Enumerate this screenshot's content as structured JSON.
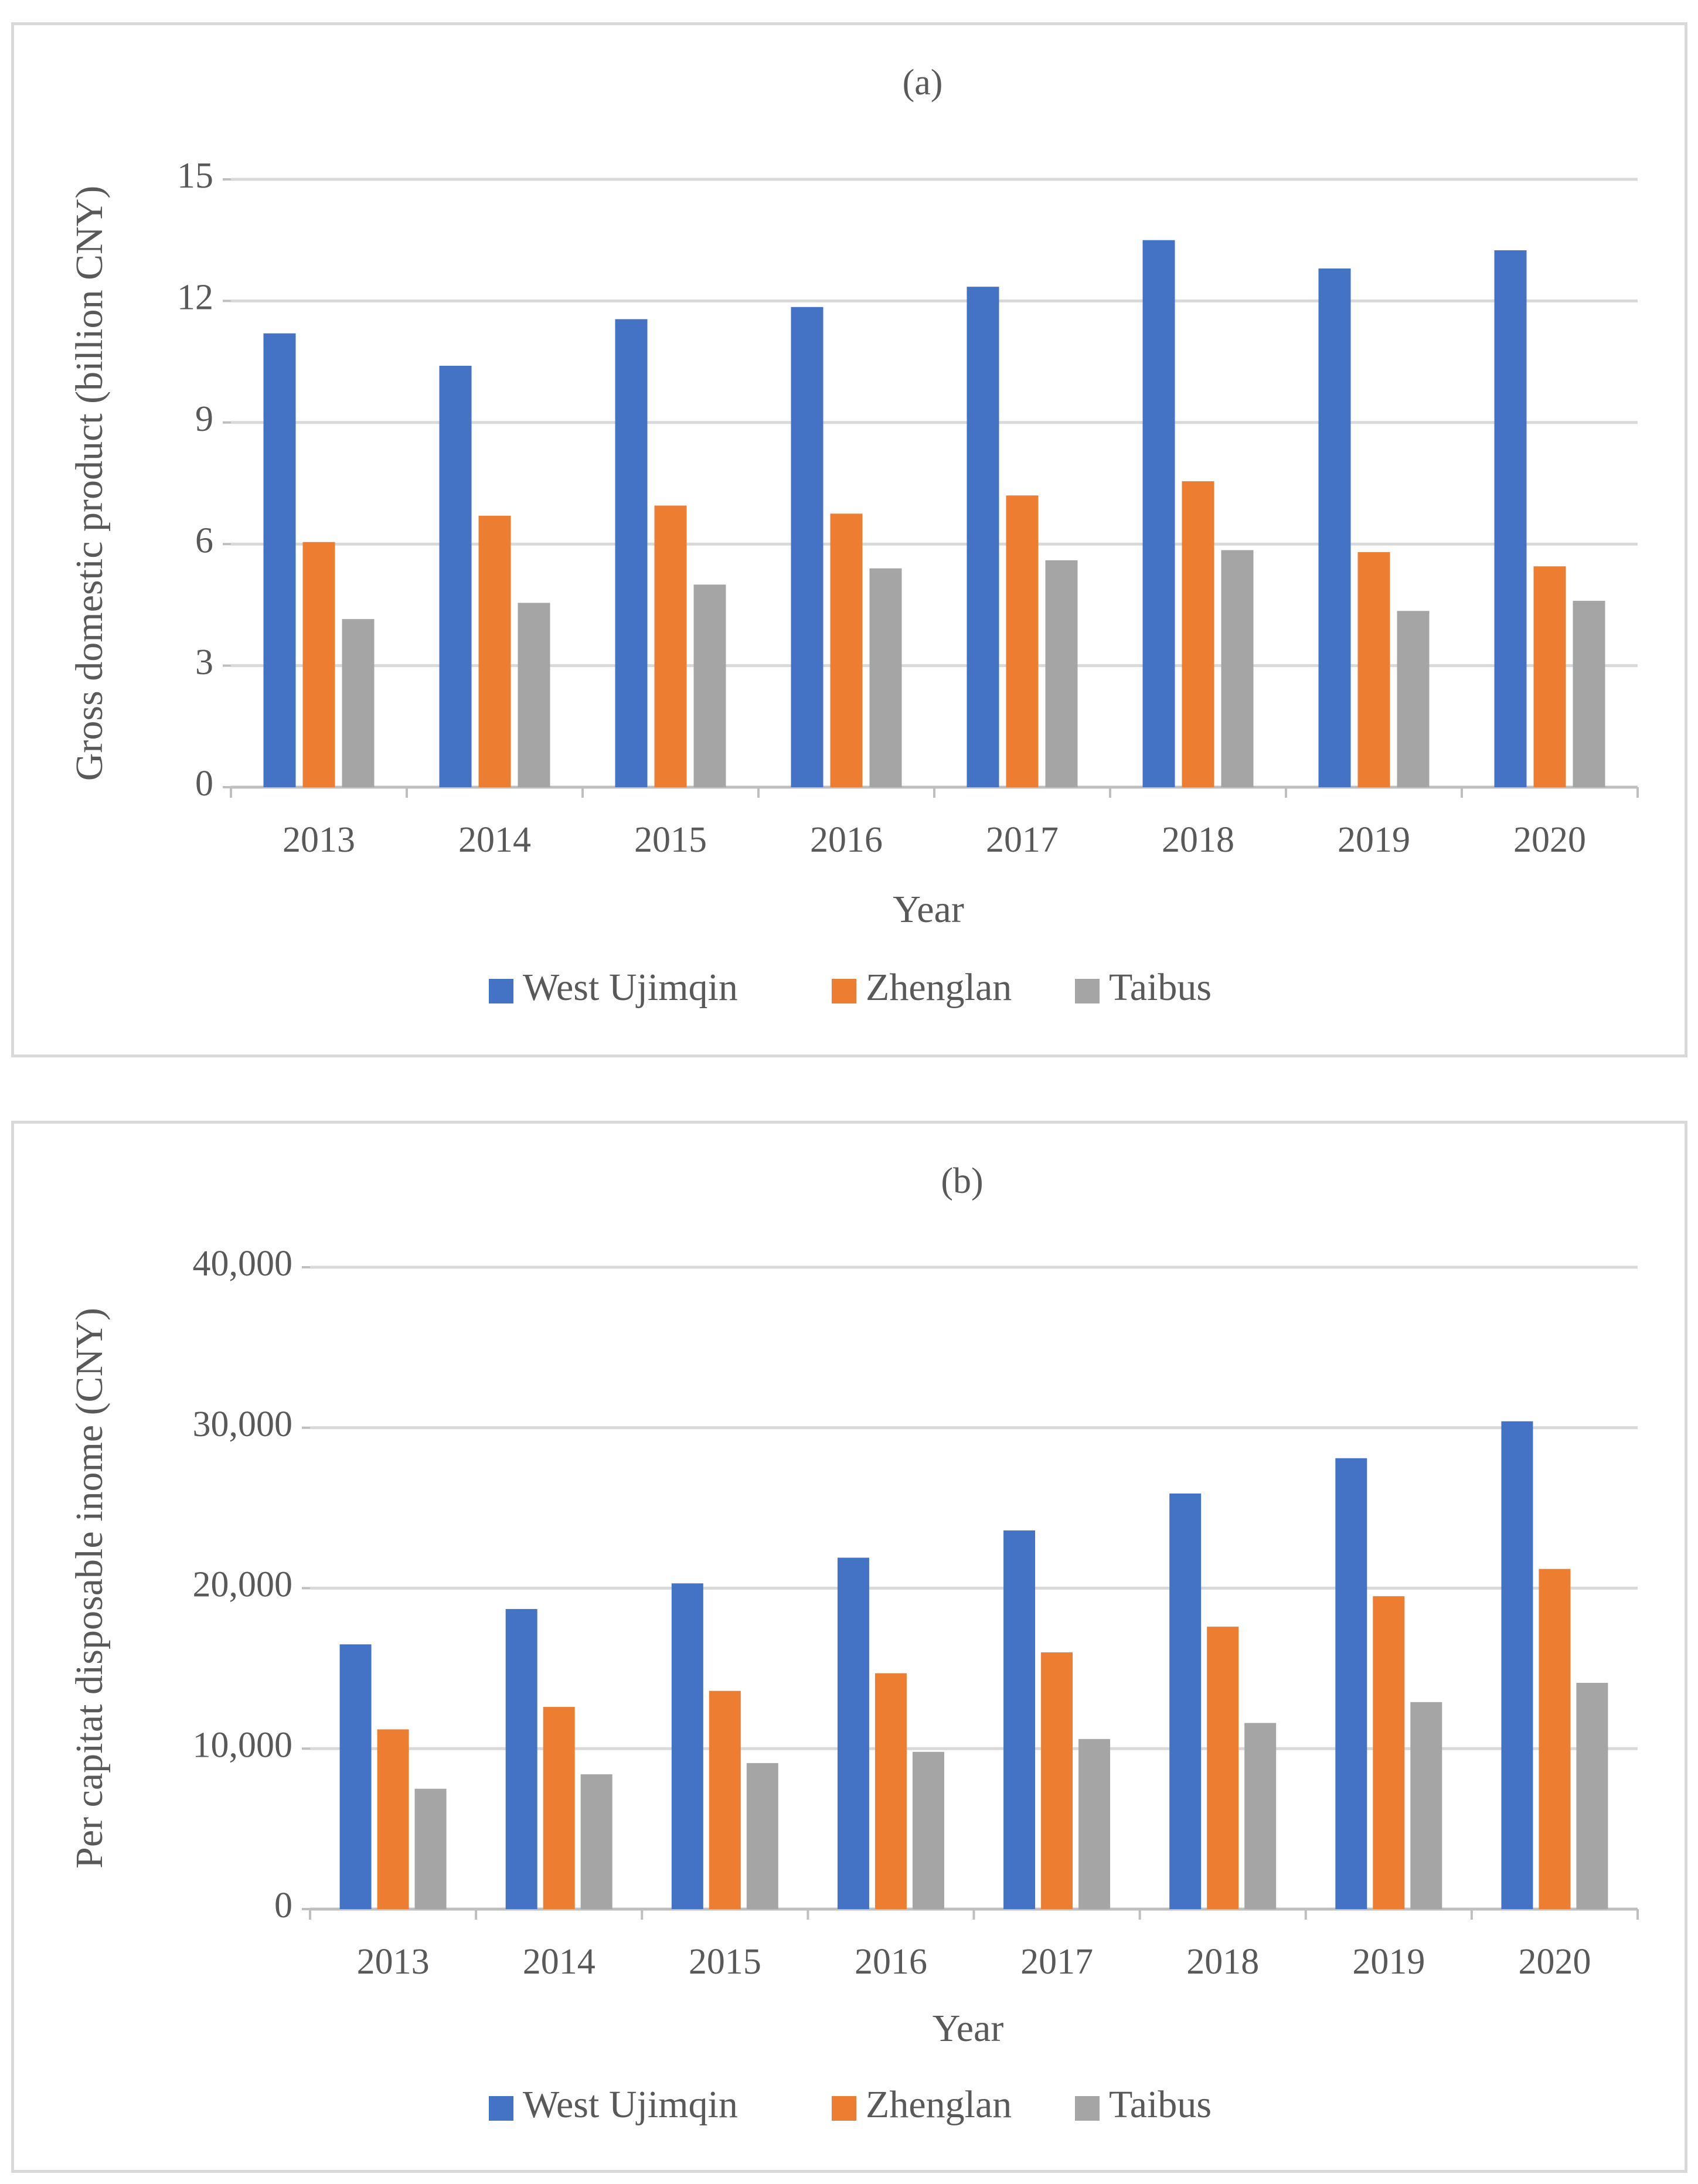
{
  "chart_data": [
    {
      "type": "bar",
      "title": "(a)",
      "xlabel": "Year",
      "ylabel": "Gross domestic product (billion CNY)",
      "ylim": [
        0,
        15
      ],
      "yticks": [
        0,
        3,
        6,
        9,
        12,
        15
      ],
      "ytick_labels": [
        "0",
        "3",
        "6",
        "9",
        "12",
        "15"
      ],
      "grid": true,
      "legend": "bottom",
      "categories": [
        "2013",
        "2014",
        "2015",
        "2016",
        "2017",
        "2018",
        "2019",
        "2020"
      ],
      "series": [
        {
          "name": "West Ujimqin",
          "color": "#4472c4",
          "values": [
            11.2,
            10.4,
            11.55,
            11.85,
            12.35,
            13.5,
            12.8,
            13.25
          ]
        },
        {
          "name": "Zhenglan",
          "color": "#ed7d31",
          "values": [
            6.05,
            6.7,
            6.95,
            6.75,
            7.2,
            7.55,
            5.8,
            5.45
          ]
        },
        {
          "name": "Taibus",
          "color": "#a5a5a5",
          "values": [
            4.15,
            4.55,
            5.0,
            5.4,
            5.6,
            5.85,
            4.35,
            4.6
          ]
        }
      ]
    },
    {
      "type": "bar",
      "title": "(b)",
      "xlabel": "Year",
      "ylabel": "Per capitat disposable inome  (CNY)",
      "ylim": [
        0,
        40000
      ],
      "yticks": [
        0,
        10000,
        20000,
        30000,
        40000
      ],
      "ytick_labels": [
        "0",
        "10,000",
        "20,000",
        "30,000",
        "40,000"
      ],
      "grid": true,
      "legend": "bottom",
      "categories": [
        "2013",
        "2014",
        "2015",
        "2016",
        "2017",
        "2018",
        "2019",
        "2020"
      ],
      "series": [
        {
          "name": "West Ujimqin",
          "color": "#4472c4",
          "values": [
            16500,
            18700,
            20300,
            21900,
            23600,
            25900,
            28100,
            30400
          ]
        },
        {
          "name": "Zhenglan",
          "color": "#ed7d31",
          "values": [
            11200,
            12600,
            13600,
            14700,
            16000,
            17600,
            19500,
            21200
          ]
        },
        {
          "name": "Taibus",
          "color": "#a5a5a5",
          "values": [
            7500,
            8400,
            9100,
            9800,
            10600,
            11600,
            12900,
            14100
          ]
        }
      ]
    }
  ]
}
